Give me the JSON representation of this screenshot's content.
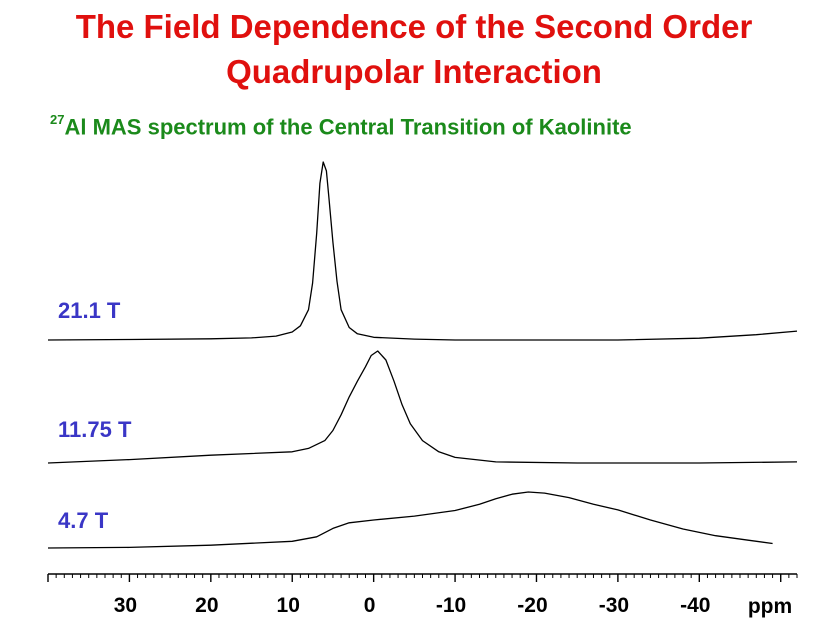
{
  "title_line1": "The Field Dependence of the Second Order",
  "title_line2": "Quadrupolar Interaction",
  "subtitle": {
    "superscript": "27",
    "text": "Al MAS spectrum of the Central Transition of Kaolinite"
  },
  "colors": {
    "title": "#e0100e",
    "subtitle": "#1b8a1b",
    "labels": "#3a36c6",
    "trace": "#000000"
  },
  "chart_data": {
    "type": "line",
    "title": "The Field Dependence of the Second Order Quadrupolar Interaction",
    "subtitle": "27Al MAS spectrum of the Central Transition of Kaolinite",
    "xlabel": "ppm",
    "xlim": [
      40,
      -52
    ],
    "x_reversed": true,
    "xticks": [
      30,
      20,
      10,
      0,
      -10,
      -20,
      -30,
      -40
    ],
    "xtick_labels": [
      "30",
      "20",
      "10",
      "0",
      "-10",
      "-20",
      "-30",
      "-40"
    ],
    "grid": false,
    "series": [
      {
        "name": "21.1 T",
        "points": [
          [
            40,
            0
          ],
          [
            30,
            0.003
          ],
          [
            20,
            0.007
          ],
          [
            15,
            0.012
          ],
          [
            12,
            0.022
          ],
          [
            10,
            0.045
          ],
          [
            9,
            0.08
          ],
          [
            8,
            0.17
          ],
          [
            7.5,
            0.32
          ],
          [
            7,
            0.6
          ],
          [
            6.6,
            0.88
          ],
          [
            6.2,
            1.0
          ],
          [
            5.8,
            0.95
          ],
          [
            5.5,
            0.8
          ],
          [
            5,
            0.55
          ],
          [
            4.5,
            0.33
          ],
          [
            4,
            0.17
          ],
          [
            3,
            0.07
          ],
          [
            2,
            0.035
          ],
          [
            0,
            0.015
          ],
          [
            -5,
            0.005
          ],
          [
            -10,
            0
          ],
          [
            -20,
            0
          ],
          [
            -30,
            0
          ],
          [
            -40,
            0.01
          ],
          [
            -47,
            0.03
          ],
          [
            -52,
            0.05
          ]
        ]
      },
      {
        "name": "11.75 T",
        "points": [
          [
            40,
            0
          ],
          [
            30,
            0.03
          ],
          [
            20,
            0.07
          ],
          [
            10,
            0.1
          ],
          [
            8,
            0.13
          ],
          [
            6,
            0.2
          ],
          [
            5,
            0.29
          ],
          [
            4,
            0.43
          ],
          [
            3,
            0.59
          ],
          [
            2,
            0.73
          ],
          [
            1,
            0.86
          ],
          [
            0.3,
            0.96
          ],
          [
            -0.5,
            1.0
          ],
          [
            -1.5,
            0.92
          ],
          [
            -2.5,
            0.73
          ],
          [
            -3.5,
            0.52
          ],
          [
            -4.5,
            0.35
          ],
          [
            -6,
            0.2
          ],
          [
            -8,
            0.1
          ],
          [
            -10,
            0.05
          ],
          [
            -15,
            0.01
          ],
          [
            -25,
            0
          ],
          [
            -40,
            0
          ],
          [
            -52,
            0.01
          ]
        ]
      },
      {
        "name": "4.7 T",
        "points": [
          [
            40,
            0
          ],
          [
            30,
            0.01
          ],
          [
            20,
            0.05
          ],
          [
            10,
            0.12
          ],
          [
            7,
            0.2
          ],
          [
            5,
            0.35
          ],
          [
            3,
            0.45
          ],
          [
            0,
            0.5
          ],
          [
            -5,
            0.57
          ],
          [
            -10,
            0.67
          ],
          [
            -13,
            0.78
          ],
          [
            -15,
            0.88
          ],
          [
            -17,
            0.96
          ],
          [
            -19,
            1.0
          ],
          [
            -21,
            0.98
          ],
          [
            -24,
            0.9
          ],
          [
            -27,
            0.78
          ],
          [
            -30,
            0.68
          ],
          [
            -34,
            0.5
          ],
          [
            -38,
            0.34
          ],
          [
            -42,
            0.22
          ],
          [
            -46,
            0.14
          ],
          [
            -49,
            0.08
          ]
        ]
      }
    ]
  }
}
